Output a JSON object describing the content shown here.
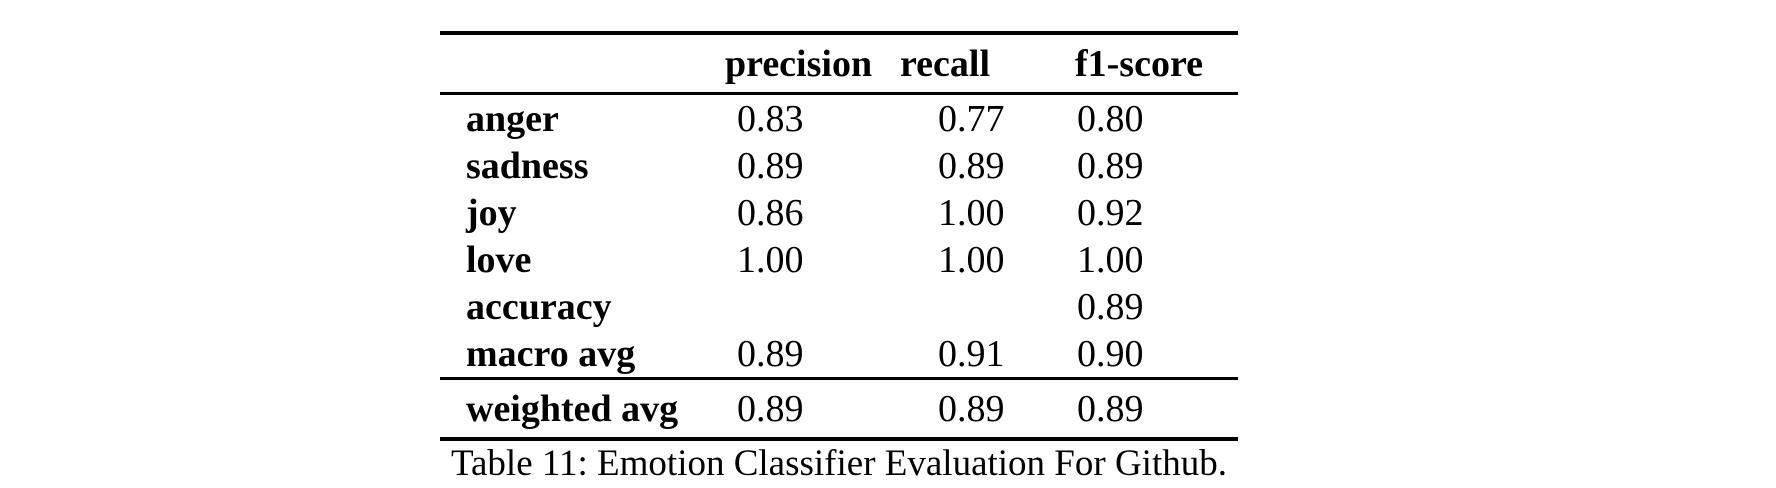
{
  "colors": {
    "text": "#000000",
    "background": "#ffffff"
  },
  "table": {
    "columns": [
      "",
      "precision",
      "recall",
      "f1-score"
    ],
    "rows": [
      {
        "label": "anger",
        "precision": "0.83",
        "recall": "0.77",
        "f1": "0.80"
      },
      {
        "label": "sadness",
        "precision": "0.89",
        "recall": "0.89",
        "f1": "0.89"
      },
      {
        "label": "joy",
        "precision": "0.86",
        "recall": "1.00",
        "f1": "0.92"
      },
      {
        "label": "love",
        "precision": "1.00",
        "recall": "1.00",
        "f1": "1.00"
      },
      {
        "label": "accuracy",
        "precision": "",
        "recall": "",
        "f1": "0.89"
      },
      {
        "label": "macro avg",
        "precision": "0.89",
        "recall": "0.91",
        "f1": "0.90"
      }
    ],
    "footer_row": {
      "label": "weighted avg",
      "precision": "0.89",
      "recall": "0.89",
      "f1": "0.89"
    }
  },
  "caption": "Table 11: Emotion Classifier Evaluation For Github."
}
